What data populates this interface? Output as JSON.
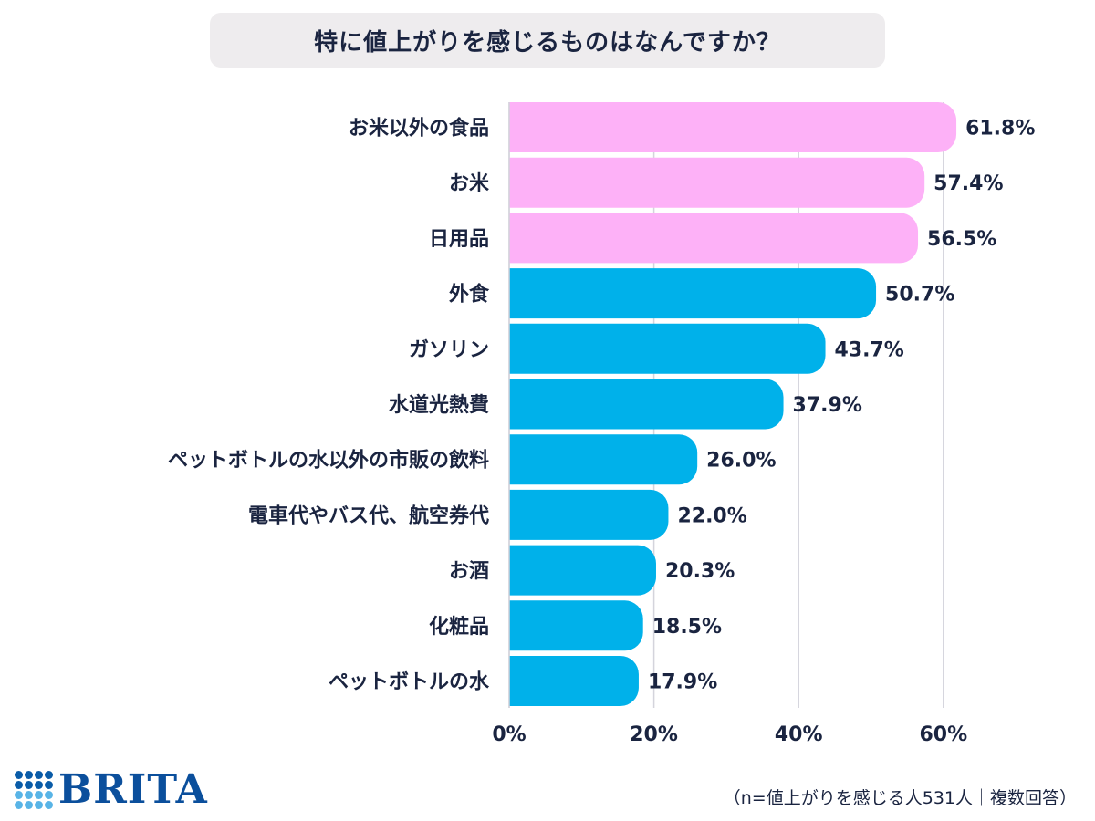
{
  "chart_data": {
    "type": "bar",
    "orientation": "horizontal",
    "title": "特に値上がりを感じるものはなんですか？",
    "categories": [
      "お米以外の食品",
      "お米",
      "日用品",
      "外食",
      "ガソリン",
      "水道光熱費",
      "ペットボトルの水以外の市販の飲料",
      "電車代やバス代、航空券代",
      "お酒",
      "化粧品",
      "ペットボトルの水"
    ],
    "values": [
      61.8,
      57.4,
      56.5,
      50.7,
      43.7,
      37.9,
      26.0,
      22.0,
      20.3,
      18.5,
      17.9
    ],
    "value_labels": [
      "61.8%",
      "57.4%",
      "56.5%",
      "50.7%",
      "43.7%",
      "37.9%",
      "26.0%",
      "22.0%",
      "20.3%",
      "18.5%",
      "17.9%"
    ],
    "highlight_count": 3,
    "colors": {
      "highlight": "#fdb1f7",
      "default": "#00b1ea",
      "grid": "#d4d4dc"
    },
    "xlim": [
      0,
      70
    ],
    "xticks": [
      0,
      20,
      40,
      60
    ],
    "xtick_labels": [
      "0%",
      "20%",
      "40%",
      "60%"
    ],
    "grid": true
  },
  "footnote": "（n=値上がりを感じる人531人｜複数回答）",
  "logo": {
    "text": "BRITA"
  }
}
